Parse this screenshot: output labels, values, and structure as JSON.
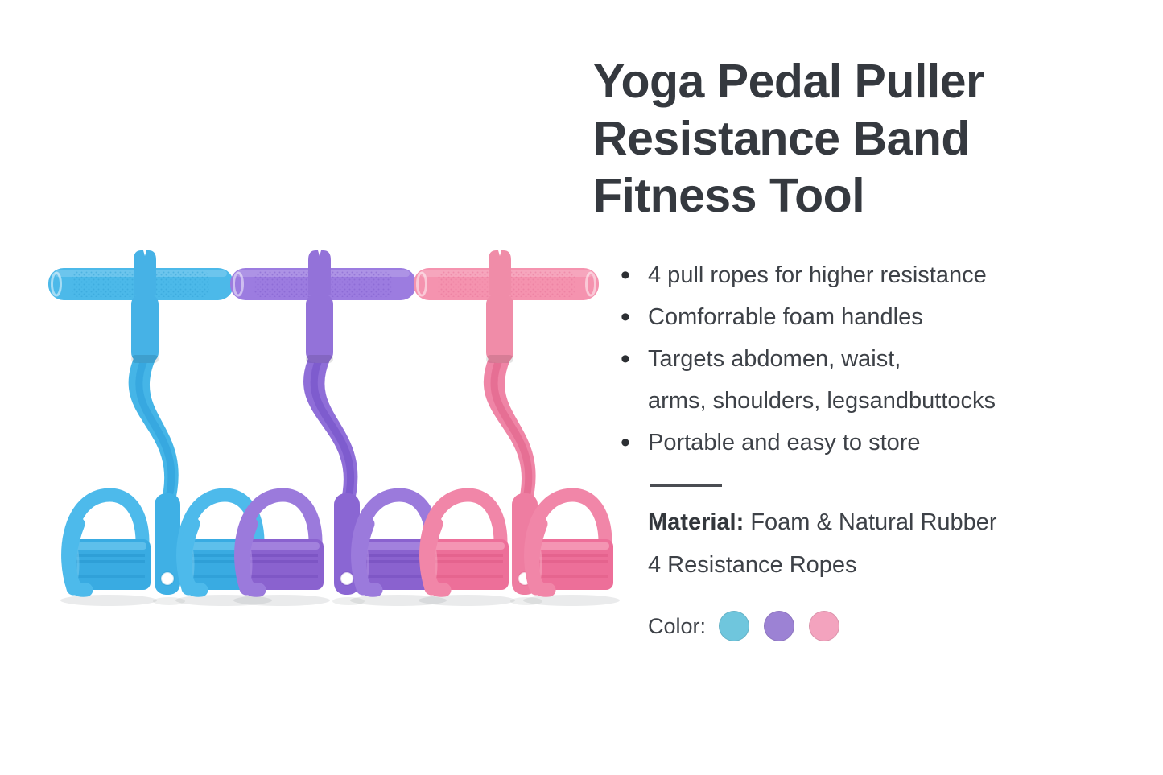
{
  "product": {
    "title": "Yoga Pedal Puller\nResistance Band\nFitness Tool",
    "features": [
      "4 pull ropes for higher resistance",
      "Comforrable foam handles",
      "Targets abdomen, waist,\narms, shoulders, legsandbuttocks",
      "Portable and easy to store"
    ],
    "material": {
      "label": "Material:",
      "value": " Foam & Natural Rubber"
    },
    "ropes_line": "4 Resistance Ropes",
    "color_label": "Color:",
    "variants": [
      {
        "name": "blue",
        "swatch": "#6fc6dd",
        "art": {
          "bar": "#4cb9e9",
          "knurl": "#2f9fd6",
          "connector": "#46b2e6",
          "rope": "#45b5e7",
          "ropeDark": "#37a8e0",
          "grip": "#3fb0e5",
          "cyl": "#39abe2",
          "cylDark": "#1f8ec9",
          "cylLight": "#7dd0f2",
          "arch": "#4dbaeb"
        }
      },
      {
        "name": "purple",
        "swatch": "#9c82d4",
        "art": {
          "bar": "#9c7ce0",
          "knurl": "#7e5bcb",
          "connector": "#9372d9",
          "rope": "#8f6ed8",
          "ropeDark": "#7e5cce",
          "grip": "#8a66d3",
          "cyl": "#8a62cf",
          "cylDark": "#6a44b4",
          "cylLight": "#b79aea",
          "arch": "#9b7adc"
        }
      },
      {
        "name": "pink",
        "swatch": "#f3a3be",
        "art": {
          "bar": "#f593af",
          "knurl": "#e87399",
          "connector": "#f08ca8",
          "rope": "#ef85a6",
          "ropeDark": "#e66f94",
          "grip": "#ee7da1",
          "cyl": "#ed6f99",
          "cylDark": "#d9537e",
          "cylLight": "#f9b4c8",
          "arch": "#f186a8"
        }
      }
    ],
    "text_color": "#3a3e44",
    "background": "#ffffff"
  }
}
